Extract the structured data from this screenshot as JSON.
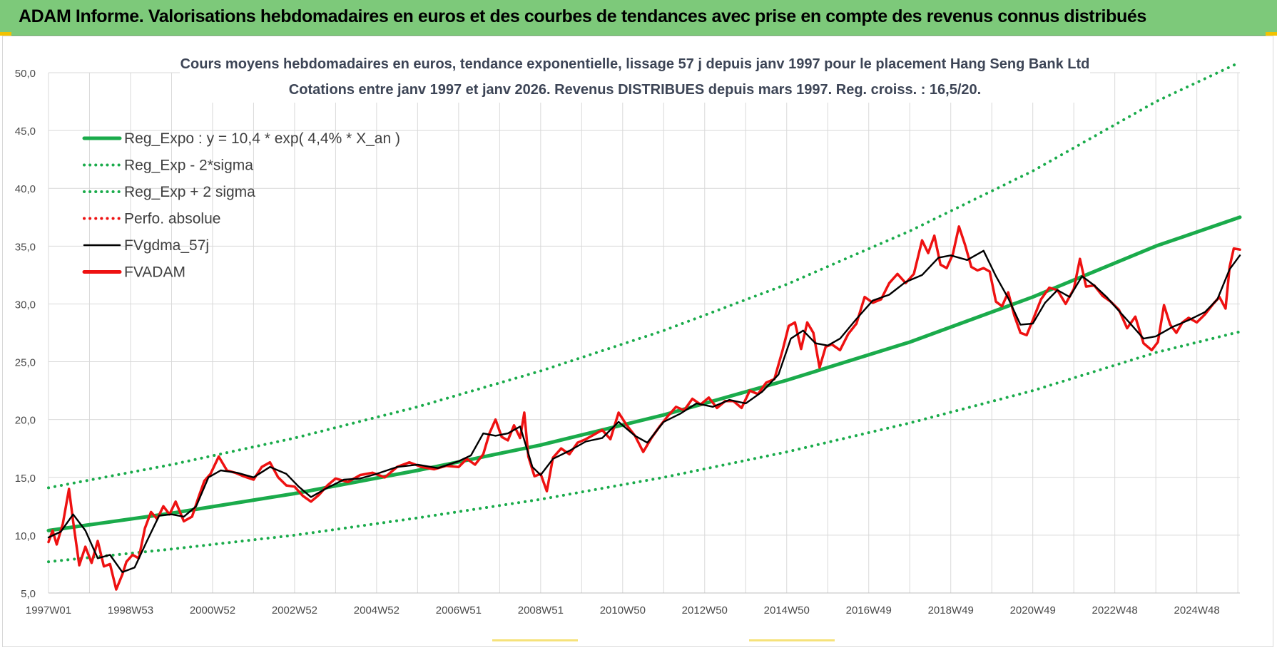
{
  "banner": {
    "title": "ADAM Informe. Valorisations hebdomadaires en euros et des courbes de tendances avec prise en compte des revenus connus distribués"
  },
  "colors": {
    "banner_bg": "#7dc97a",
    "trend": "#1aab4b",
    "smooth": "#000000",
    "price": "#ee1111"
  },
  "chart_data": {
    "type": "line",
    "title": "Cours moyens hebdomadaires en euros, tendance exponentielle, lissage 57 j depuis janv 1997 pour le placement Hang Seng Bank Ltd",
    "subtitle": "Cotations entre janv 1997 et janv 2026. Revenus DISTRIBUES depuis mars 1997. Reg. croiss. : 16,5/20.",
    "xlabel": "",
    "ylabel": "",
    "ylim": [
      5,
      50
    ],
    "xlim": [
      1997.0,
      2026.05
    ],
    "yticks": [
      "5,0",
      "10,0",
      "15,0",
      "20,0",
      "25,0",
      "30,0",
      "35,0",
      "40,0",
      "45,0",
      "50,0"
    ],
    "xticks": [
      {
        "label": "1997W01",
        "x": 1997.0
      },
      {
        "label": "1998W53",
        "x": 1999.0
      },
      {
        "label": "2000W52",
        "x": 2001.0
      },
      {
        "label": "2002W52",
        "x": 2003.0
      },
      {
        "label": "2004W52",
        "x": 2005.0
      },
      {
        "label": "2006W51",
        "x": 2007.0
      },
      {
        "label": "2008W51",
        "x": 2009.0
      },
      {
        "label": "2010W50",
        "x": 2011.0
      },
      {
        "label": "2012W50",
        "x": 2013.0
      },
      {
        "label": "2014W50",
        "x": 2015.0
      },
      {
        "label": "2016W49",
        "x": 2017.0
      },
      {
        "label": "2018W49",
        "x": 2019.0
      },
      {
        "label": "2020W49",
        "x": 2021.0
      },
      {
        "label": "2022W48",
        "x": 2023.0
      },
      {
        "label": "2024W48",
        "x": 2025.0
      }
    ],
    "grid": true,
    "legend_position": "top-left",
    "series": [
      {
        "name": "Reg_Expo : y = 10,4 * exp( 4,4% *  X_an )",
        "style": "solid-thick",
        "color": "#1aab4b",
        "x": [
          1997.0,
          2000.0,
          2003.0,
          2006.0,
          2009.0,
          2012.0,
          2015.0,
          2018.0,
          2021.0,
          2024.0,
          2026.05
        ],
        "y": [
          10.4,
          11.9,
          13.6,
          15.6,
          17.8,
          20.4,
          23.4,
          26.7,
          30.6,
          35.0,
          37.5
        ]
      },
      {
        "name": "Reg_Exp - 2*sigma",
        "style": "dotted",
        "color": "#1aab4b",
        "x": [
          1997.0,
          2000.0,
          2003.0,
          2006.0,
          2009.0,
          2012.0,
          2015.0,
          2018.0,
          2021.0,
          2024.0,
          2026.05
        ],
        "y": [
          7.7,
          8.8,
          10.0,
          11.5,
          13.1,
          15.0,
          17.2,
          19.7,
          22.5,
          25.8,
          27.6
        ]
      },
      {
        "name": "Reg_Exp + 2 sigma",
        "style": "dotted",
        "color": "#1aab4b",
        "x": [
          1997.0,
          2000.0,
          2003.0,
          2006.0,
          2009.0,
          2012.0,
          2015.0,
          2018.0,
          2021.0,
          2024.0,
          2026.05
        ],
        "y": [
          14.1,
          16.1,
          18.4,
          21.1,
          24.2,
          27.7,
          31.7,
          36.3,
          41.5,
          47.5,
          50.9
        ]
      },
      {
        "name": "FVgdma_57j",
        "style": "solid",
        "color": "#000000",
        "x": [
          1997.0,
          1997.3,
          1997.6,
          1997.9,
          1998.2,
          1998.5,
          1998.8,
          1999.1,
          1999.4,
          1999.7,
          2000.0,
          2000.3,
          2000.6,
          2000.9,
          2001.2,
          2001.6,
          2002.0,
          2002.4,
          2002.8,
          2003.1,
          2003.4,
          2003.8,
          2004.2,
          2004.6,
          2005.0,
          2005.5,
          2006.0,
          2006.5,
          2007.0,
          2007.3,
          2007.6,
          2007.9,
          2008.2,
          2008.5,
          2008.8,
          2009.0,
          2009.3,
          2009.7,
          2010.1,
          2010.5,
          2010.9,
          2011.3,
          2011.6,
          2012.0,
          2012.4,
          2012.8,
          2013.2,
          2013.6,
          2014.0,
          2014.4,
          2014.8,
          2015.1,
          2015.4,
          2015.7,
          2016.0,
          2016.3,
          2016.7,
          2017.1,
          2017.5,
          2017.9,
          2018.3,
          2018.7,
          2019.0,
          2019.4,
          2019.8,
          2020.1,
          2020.4,
          2020.7,
          2021.0,
          2021.3,
          2021.6,
          2021.9,
          2022.2,
          2022.5,
          2022.8,
          2023.1,
          2023.4,
          2023.7,
          2024.0,
          2024.4,
          2024.8,
          2025.2,
          2025.5,
          2025.8,
          2026.05
        ],
        "y": [
          9.8,
          10.3,
          11.8,
          10.4,
          8.0,
          8.3,
          6.8,
          7.2,
          9.5,
          11.7,
          11.8,
          11.6,
          12.5,
          15.0,
          15.6,
          15.4,
          15.0,
          15.9,
          15.3,
          14.2,
          13.3,
          14.1,
          14.8,
          14.9,
          15.3,
          15.9,
          16.1,
          15.8,
          16.4,
          16.9,
          18.8,
          18.6,
          18.8,
          19.4,
          15.9,
          15.2,
          16.6,
          17.3,
          18.1,
          18.4,
          19.8,
          18.6,
          18.0,
          19.8,
          20.5,
          21.4,
          21.1,
          21.7,
          21.4,
          22.4,
          23.9,
          27.0,
          27.7,
          26.6,
          26.4,
          27.0,
          28.7,
          30.3,
          30.8,
          31.9,
          32.5,
          34.0,
          34.2,
          33.8,
          34.6,
          32.4,
          30.5,
          28.2,
          28.3,
          30.1,
          31.2,
          30.6,
          32.4,
          31.6,
          30.6,
          29.4,
          28.2,
          27.0,
          27.2,
          28.0,
          28.6,
          29.3,
          30.4,
          33.0,
          34.2
        ]
      },
      {
        "name": "Perfo. absolue",
        "style": "dotted",
        "color": "#ee1111",
        "x": [],
        "y": []
      },
      {
        "name": "FVADAM",
        "style": "solid-thick",
        "color": "#ee1111",
        "x": [
          1997.0,
          1997.1,
          1997.2,
          1997.35,
          1997.5,
          1997.6,
          1997.75,
          1997.9,
          1998.05,
          1998.2,
          1998.35,
          1998.5,
          1998.65,
          1998.8,
          1998.9,
          1999.05,
          1999.2,
          1999.35,
          1999.5,
          1999.65,
          1999.8,
          1999.95,
          2000.1,
          2000.3,
          2000.5,
          2000.65,
          2000.8,
          2000.95,
          2001.15,
          2001.35,
          2001.55,
          2001.75,
          2002.0,
          2002.2,
          2002.4,
          2002.6,
          2002.8,
          2003.0,
          2003.2,
          2003.4,
          2003.6,
          2003.8,
          2004.0,
          2004.3,
          2004.6,
          2004.9,
          2005.2,
          2005.5,
          2005.8,
          2006.1,
          2006.4,
          2006.7,
          2007.0,
          2007.2,
          2007.4,
          2007.6,
          2007.75,
          2007.9,
          2008.05,
          2008.2,
          2008.35,
          2008.5,
          2008.6,
          2008.7,
          2008.85,
          2009.0,
          2009.15,
          2009.3,
          2009.5,
          2009.7,
          2009.9,
          2010.1,
          2010.3,
          2010.5,
          2010.7,
          2010.9,
          2011.1,
          2011.3,
          2011.5,
          2011.7,
          2011.9,
          2012.1,
          2012.3,
          2012.5,
          2012.7,
          2012.9,
          2013.1,
          2013.3,
          2013.5,
          2013.7,
          2013.9,
          2014.1,
          2014.3,
          2014.5,
          2014.7,
          2014.9,
          2015.05,
          2015.2,
          2015.35,
          2015.5,
          2015.65,
          2015.8,
          2015.95,
          2016.1,
          2016.3,
          2016.5,
          2016.7,
          2016.9,
          2017.1,
          2017.3,
          2017.5,
          2017.7,
          2017.9,
          2018.1,
          2018.3,
          2018.45,
          2018.6,
          2018.75,
          2018.9,
          2019.05,
          2019.2,
          2019.35,
          2019.5,
          2019.65,
          2019.8,
          2019.95,
          2020.1,
          2020.25,
          2020.4,
          2020.55,
          2020.7,
          2020.85,
          2021.0,
          2021.2,
          2021.4,
          2021.6,
          2021.8,
          2022.0,
          2022.15,
          2022.3,
          2022.5,
          2022.7,
          2022.9,
          2023.1,
          2023.3,
          2023.5,
          2023.7,
          2023.9,
          2024.05,
          2024.2,
          2024.35,
          2024.5,
          2024.65,
          2024.8,
          2025.0,
          2025.2,
          2025.4,
          2025.55,
          2025.7,
          2025.8,
          2025.9,
          2026.05
        ],
        "y": [
          9.4,
          10.4,
          9.2,
          11.0,
          14.0,
          11.2,
          7.4,
          9.0,
          7.6,
          9.5,
          7.3,
          7.5,
          5.3,
          6.6,
          7.7,
          8.3,
          8.0,
          10.6,
          12.0,
          11.4,
          12.5,
          11.8,
          12.9,
          11.2,
          11.6,
          13.2,
          14.7,
          15.3,
          16.8,
          15.6,
          15.4,
          15.1,
          14.8,
          15.9,
          16.3,
          15.0,
          14.3,
          14.2,
          13.4,
          12.9,
          13.5,
          14.3,
          14.9,
          14.6,
          15.2,
          15.4,
          15.0,
          15.9,
          16.3,
          15.9,
          15.7,
          16.0,
          15.9,
          16.6,
          16.1,
          17.0,
          18.8,
          20.0,
          18.5,
          18.2,
          19.5,
          18.4,
          20.6,
          16.8,
          15.1,
          15.3,
          13.8,
          16.7,
          17.5,
          17.0,
          18.0,
          18.3,
          18.7,
          19.1,
          18.3,
          20.6,
          19.5,
          18.6,
          17.2,
          18.4,
          19.4,
          20.3,
          21.1,
          20.8,
          21.8,
          21.3,
          21.9,
          21.0,
          21.6,
          21.6,
          21.0,
          22.5,
          22.2,
          23.2,
          23.5,
          26.0,
          28.1,
          28.4,
          26.1,
          28.4,
          27.5,
          24.5,
          26.3,
          26.5,
          26.0,
          27.4,
          28.3,
          30.6,
          30.1,
          30.4,
          31.8,
          32.6,
          31.8,
          32.6,
          35.5,
          34.4,
          35.9,
          33.4,
          33.1,
          34.3,
          36.7,
          35.1,
          33.2,
          32.9,
          33.1,
          32.8,
          30.2,
          29.8,
          31.0,
          29.0,
          27.5,
          27.3,
          28.6,
          30.4,
          31.4,
          31.2,
          30.0,
          31.3,
          33.9,
          31.5,
          31.6,
          30.7,
          30.2,
          29.5,
          27.9,
          28.9,
          26.6,
          26.0,
          26.7,
          29.9,
          28.2,
          27.5,
          28.4,
          28.8,
          28.4,
          29.1,
          30.0,
          30.6,
          29.6,
          33.2,
          34.8,
          34.7
        ]
      }
    ]
  }
}
